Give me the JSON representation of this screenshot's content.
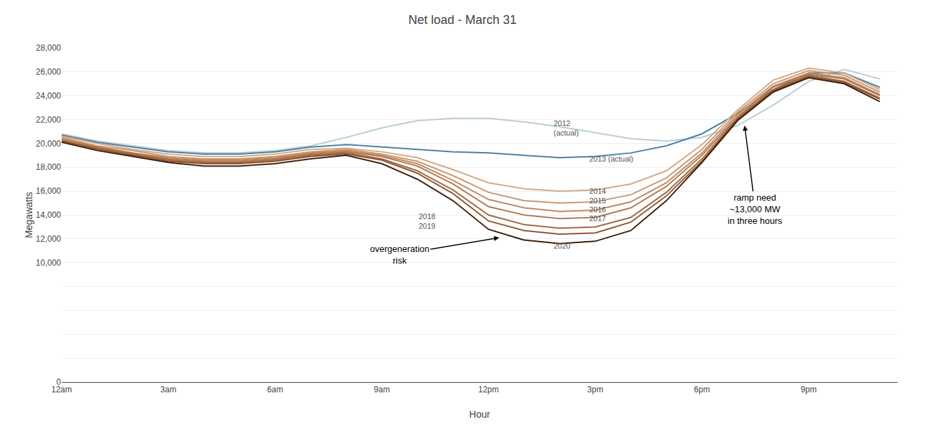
{
  "chart_data": {
    "type": "line",
    "title": "Net load - March 31",
    "x_label": "Hour",
    "y_label": "Megawatts",
    "x": [
      0,
      1,
      2,
      3,
      4,
      5,
      6,
      7,
      8,
      9,
      10,
      11,
      12,
      13,
      14,
      15,
      16,
      17,
      18,
      19,
      20,
      21,
      22,
      23
    ],
    "xlim": [
      0,
      23.5
    ],
    "xticks": [
      {
        "value": 0,
        "label": "12am"
      },
      {
        "value": 3,
        "label": "3am"
      },
      {
        "value": 6,
        "label": "6am"
      },
      {
        "value": 9,
        "label": "9am"
      },
      {
        "value": 12,
        "label": "12pm"
      },
      {
        "value": 15,
        "label": "3pm"
      },
      {
        "value": 18,
        "label": "6pm"
      },
      {
        "value": 21,
        "label": "9pm"
      }
    ],
    "ylim": [
      0,
      28000
    ],
    "yticks": [
      0,
      {
        "value": 2000,
        "label": null
      },
      {
        "value": 4000,
        "label": null
      },
      {
        "value": 6000,
        "label": null
      },
      {
        "value": 8000,
        "label": null
      },
      {
        "value": 10000,
        "label": "10,000"
      },
      {
        "value": 12000,
        "label": "12,000"
      },
      {
        "value": 14000,
        "label": "14,000"
      },
      {
        "value": 16000,
        "label": "16,000"
      },
      {
        "value": 18000,
        "label": "18,000"
      },
      {
        "value": 20000,
        "label": "20,000"
      },
      {
        "value": 22000,
        "label": "22,000"
      },
      {
        "value": 24000,
        "label": "24,000"
      },
      {
        "value": 26000,
        "label": "26,000"
      },
      {
        "value": 28000,
        "label": "28,000"
      }
    ],
    "grid": true,
    "series": [
      {
        "name": "2012",
        "color": "#b8cdd8",
        "values": [
          20800,
          20200,
          19800,
          19400,
          19200,
          19200,
          19400,
          19800,
          20500,
          21300,
          21900,
          22100,
          22100,
          21800,
          21400,
          20900,
          20400,
          20200,
          20500,
          21500,
          23200,
          25200,
          26200,
          25400
        ]
      },
      {
        "name": "2013",
        "color": "#4a7fa5",
        "values": [
          20700,
          20100,
          19700,
          19300,
          19100,
          19100,
          19300,
          19700,
          19900,
          19700,
          19500,
          19300,
          19200,
          19000,
          18800,
          18900,
          19200,
          19800,
          20800,
          22500,
          24500,
          25900,
          25900,
          24700
        ]
      },
      {
        "name": "2014",
        "color": "#d4a882",
        "values": [
          20600,
          20000,
          19500,
          19100,
          18900,
          18900,
          19100,
          19500,
          19600,
          19300,
          18800,
          17800,
          16700,
          16200,
          16000,
          16100,
          16600,
          17700,
          19900,
          22800,
          25300,
          26300,
          25900,
          24500
        ]
      },
      {
        "name": "2015",
        "color": "#c99870",
        "values": [
          20500,
          19800,
          19400,
          18900,
          18700,
          18700,
          18900,
          19300,
          19500,
          19100,
          18500,
          17300,
          15900,
          15200,
          15000,
          15100,
          15700,
          17100,
          19500,
          22600,
          25000,
          26100,
          25700,
          24300
        ]
      },
      {
        "name": "2016",
        "color": "#be8860",
        "values": [
          20400,
          19700,
          19200,
          18800,
          18600,
          18600,
          18800,
          19200,
          19400,
          19000,
          18300,
          16900,
          15300,
          14600,
          14300,
          14400,
          15100,
          16700,
          19200,
          22400,
          24800,
          25900,
          25500,
          24100
        ]
      },
      {
        "name": "2017",
        "color": "#b37850",
        "values": [
          20300,
          19700,
          19200,
          18700,
          18500,
          18500,
          18700,
          19100,
          19300,
          18900,
          18100,
          16600,
          14700,
          14000,
          13700,
          13800,
          14600,
          16400,
          19000,
          22200,
          24700,
          25800,
          25400,
          24000
        ]
      },
      {
        "name": "2018",
        "color": "#a06840",
        "values": [
          20200,
          19600,
          19100,
          18600,
          18400,
          18400,
          18600,
          19000,
          19200,
          18700,
          17700,
          16100,
          14000,
          13200,
          12900,
          13000,
          13800,
          15900,
          18700,
          22100,
          24500,
          25700,
          25200,
          23800
        ]
      },
      {
        "name": "2019",
        "color": "#8b5530",
        "values": [
          20200,
          19500,
          19000,
          18500,
          18300,
          18300,
          18500,
          18900,
          19100,
          18600,
          17500,
          15800,
          13500,
          12700,
          12400,
          12500,
          13400,
          15600,
          18500,
          22000,
          24400,
          25600,
          25100,
          23700
        ]
      },
      {
        "name": "2020",
        "color": "#3d1f0a",
        "values": [
          20100,
          19400,
          18900,
          18400,
          18100,
          18100,
          18300,
          18700,
          19000,
          18300,
          17000,
          15200,
          12800,
          11900,
          11600,
          11800,
          12700,
          15200,
          18400,
          21900,
          24300,
          25500,
          25000,
          23500
        ]
      }
    ],
    "annotations": [
      {
        "text": "2012\n(actual)",
        "x": 13.8,
        "y": 21300,
        "color": "#555555"
      },
      {
        "text": "2013 (actual)",
        "x": 14.8,
        "y": 18700,
        "color": "#555555"
      },
      {
        "text": "2014",
        "x": 14.8,
        "y": 16000,
        "color": "#555555"
      },
      {
        "text": "2015",
        "x": 14.8,
        "y": 15200,
        "color": "#555555"
      },
      {
        "text": "2016",
        "x": 14.8,
        "y": 14450,
        "color": "#555555"
      },
      {
        "text": "2017",
        "x": 14.8,
        "y": 13700,
        "color": "#555555"
      },
      {
        "text": "2018",
        "x": 10.0,
        "y": 13900,
        "color": "#555555"
      },
      {
        "text": "2019",
        "x": 10.0,
        "y": 13100,
        "color": "#555555"
      },
      {
        "text": "2020",
        "x": 13.8,
        "y": 11400,
        "color": "#555555"
      },
      {
        "text": "overgeneration\nrisk",
        "x": 9.5,
        "y": 10700,
        "arrow_to": [
          12.3,
          12100
        ]
      },
      {
        "text": "ramp need\n~13,000 MW\nin three hours",
        "x": 19.5,
        "y": 14500,
        "arrow_to": [
          19.2,
          21500
        ]
      }
    ]
  }
}
